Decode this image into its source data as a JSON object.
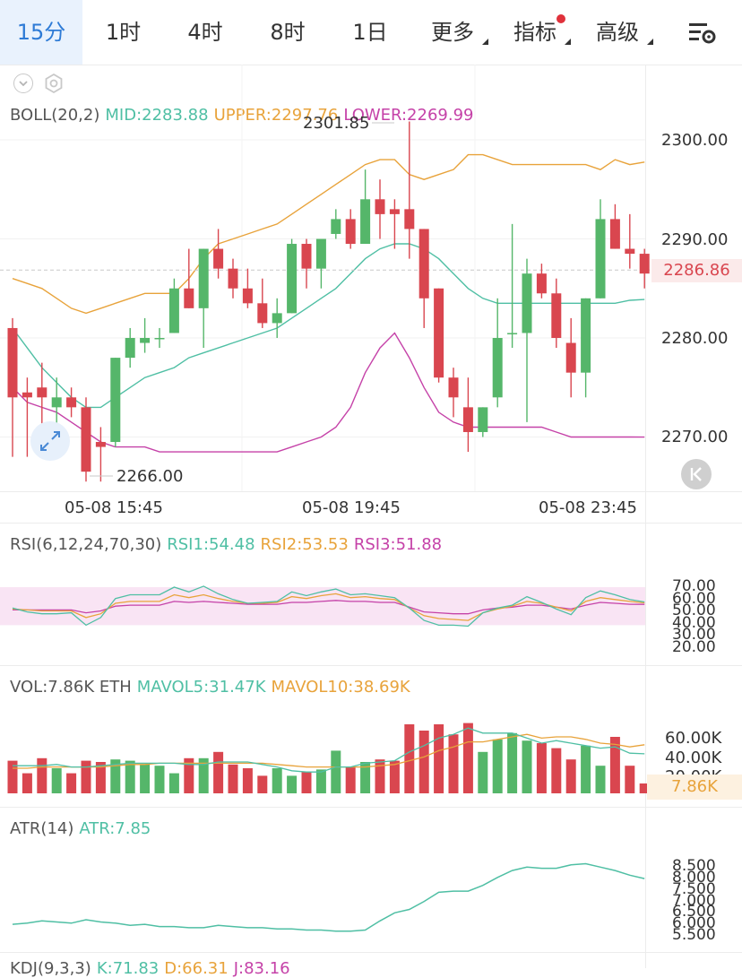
{
  "tabs": [
    {
      "label": "15分",
      "active": true
    },
    {
      "label": "1时"
    },
    {
      "label": "4时"
    },
    {
      "label": "8时"
    },
    {
      "label": "1日"
    },
    {
      "label": "更多",
      "dropdown": true
    },
    {
      "label": "指标",
      "dropdown": true,
      "dot": true
    },
    {
      "label": "高级",
      "dropdown": true
    }
  ],
  "settings_icon": "chart-settings-icon",
  "colors": {
    "up": "#55b66a",
    "down": "#d9464f",
    "mid": "#4fbfa4",
    "upper": "#e8a33b",
    "lower": "#c542a8",
    "rsi_band": "#f9e4f4"
  },
  "boll": {
    "label": "BOLL(20,2)",
    "mid": "MID:2283.88",
    "upper": "UPPER:2297.76",
    "lower": "LOWER:2269.99"
  },
  "price_axis": [
    "2300.00",
    "2290.00",
    "2280.00",
    "2270.00"
  ],
  "last_price": "2286.86",
  "high_label": "2301.85",
  "low_label": "2266.00",
  "time_labels": [
    "05-08 15:45",
    "05-08 19:45",
    "05-08 23:45"
  ],
  "rsi": {
    "label": "RSI(6,12,24,70,30)",
    "rsi1": "RSI1:54.48",
    "rsi2": "RSI2:53.53",
    "rsi3": "RSI3:51.88",
    "axis": [
      "70.00",
      "60.00",
      "50.00",
      "40.00",
      "30.00",
      "20.00"
    ]
  },
  "vol": {
    "label": "VOL:7.86K ETH",
    "mavol5": "MAVOL5:31.47K",
    "mavol10": "MAVOL10:38.69K",
    "axis": [
      "60.00K",
      "40.00K",
      "20.00K"
    ],
    "last": "7.86K"
  },
  "atr": {
    "label": "ATR(14)",
    "value": "ATR:7.85",
    "axis": [
      "8.500",
      "8.000",
      "7.500",
      "7.000",
      "6.500",
      "6.000",
      "5.500"
    ]
  },
  "kdj": {
    "label": "KDJ(9,3,3)",
    "k": "K:71.83",
    "d": "D:66.31",
    "j": "J:83.16"
  },
  "chart_data": {
    "type": "candlestick",
    "interval": "15m",
    "ylim": [
      2265,
      2302
    ],
    "candles": [
      {
        "o": 2281,
        "c": 2274,
        "h": 2282,
        "l": 2268
      },
      {
        "o": 2274.5,
        "c": 2274,
        "h": 2276,
        "l": 2268
      },
      {
        "o": 2275,
        "c": 2274,
        "h": 2277.5,
        "l": 2271
      },
      {
        "o": 2273,
        "c": 2274,
        "h": 2276,
        "l": 2268
      },
      {
        "o": 2274,
        "c": 2273,
        "h": 2275,
        "l": 2272
      },
      {
        "o": 2273,
        "c": 2266.5,
        "h": 2274,
        "l": 2265.5
      },
      {
        "o": 2269.5,
        "c": 2269,
        "h": 2271,
        "l": 2265.5
      },
      {
        "o": 2269.5,
        "c": 2278,
        "h": 2278,
        "l": 2269
      },
      {
        "o": 2278,
        "c": 2280,
        "h": 2281,
        "l": 2277
      },
      {
        "o": 2279.5,
        "c": 2280,
        "h": 2282,
        "l": 2278.5
      },
      {
        "o": 2280,
        "c": 2280,
        "h": 2281,
        "l": 2279
      },
      {
        "o": 2280.5,
        "c": 2285,
        "h": 2286,
        "l": 2280.5
      },
      {
        "o": 2285,
        "c": 2283,
        "h": 2289,
        "l": 2283
      },
      {
        "o": 2283,
        "c": 2289,
        "h": 2289,
        "l": 2279
      },
      {
        "o": 2289,
        "c": 2287,
        "h": 2291,
        "l": 2286
      },
      {
        "o": 2287,
        "c": 2285,
        "h": 2288,
        "l": 2284
      },
      {
        "o": 2285,
        "c": 2283.5,
        "h": 2287,
        "l": 2283
      },
      {
        "o": 2283.5,
        "c": 2281.5,
        "h": 2286,
        "l": 2281
      },
      {
        "o": 2281.5,
        "c": 2282.5,
        "h": 2284,
        "l": 2280
      },
      {
        "o": 2282.5,
        "c": 2289.5,
        "h": 2290,
        "l": 2282.5
      },
      {
        "o": 2289.5,
        "c": 2287,
        "h": 2290,
        "l": 2285
      },
      {
        "o": 2287,
        "c": 2290,
        "h": 2290,
        "l": 2285
      },
      {
        "o": 2290.5,
        "c": 2292,
        "h": 2293,
        "l": 2290
      },
      {
        "o": 2292,
        "c": 2289.5,
        "h": 2293,
        "l": 2289
      },
      {
        "o": 2289.5,
        "c": 2294,
        "h": 2297,
        "l": 2289.5
      },
      {
        "o": 2294,
        "c": 2292.5,
        "h": 2296,
        "l": 2290
      },
      {
        "o": 2293,
        "c": 2292.5,
        "h": 2294,
        "l": 2289
      },
      {
        "o": 2293,
        "c": 2291,
        "h": 2301.85,
        "l": 2288
      },
      {
        "o": 2291,
        "c": 2284,
        "h": 2291,
        "l": 2281
      },
      {
        "o": 2285,
        "c": 2276,
        "h": 2285,
        "l": 2275.5
      },
      {
        "o": 2276,
        "c": 2274,
        "h": 2277,
        "l": 2272
      },
      {
        "o": 2273,
        "c": 2270.5,
        "h": 2276,
        "l": 2268.5
      },
      {
        "o": 2270.5,
        "c": 2273,
        "h": 2273,
        "l": 2270
      },
      {
        "o": 2274,
        "c": 2280,
        "h": 2284,
        "l": 2273
      },
      {
        "o": 2280.5,
        "c": 2280.5,
        "h": 2291.5,
        "l": 2279
      },
      {
        "o": 2280.5,
        "c": 2286.5,
        "h": 2288,
        "l": 2271.5
      },
      {
        "o": 2286.5,
        "c": 2284.5,
        "h": 2287.5,
        "l": 2284
      },
      {
        "o": 2284.5,
        "c": 2280,
        "h": 2286,
        "l": 2279
      },
      {
        "o": 2279.5,
        "c": 2276.5,
        "h": 2282,
        "l": 2274
      },
      {
        "o": 2276.5,
        "c": 2284,
        "h": 2284,
        "l": 2274
      },
      {
        "o": 2284,
        "c": 2292,
        "h": 2294,
        "l": 2284
      },
      {
        "o": 2292,
        "c": 2289,
        "h": 2293.5,
        "l": 2289
      },
      {
        "o": 2289,
        "c": 2288.5,
        "h": 2292.5,
        "l": 2287
      },
      {
        "o": 2288.5,
        "c": 2286.5,
        "h": 2289,
        "l": 2285
      }
    ],
    "boll_mid": [
      2281,
      2279,
      2277,
      2275.5,
      2274,
      2273,
      2273,
      2274,
      2275,
      2276,
      2276.5,
      2277,
      2278,
      2278.5,
      2279,
      2279.5,
      2280,
      2280.5,
      2281,
      2282,
      2283,
      2284,
      2285,
      2286.5,
      2288,
      2289,
      2289.5,
      2289.5,
      2289,
      2288,
      2286.5,
      2285,
      2284,
      2283.5,
      2283.5,
      2283.5,
      2283.5,
      2283.5,
      2283.5,
      2283.5,
      2283.5,
      2283.5,
      2283.8,
      2283.88
    ],
    "boll_upper": [
      2286,
      2285.5,
      2285,
      2284,
      2283,
      2282.5,
      2283,
      2283.5,
      2284,
      2284.5,
      2284.5,
      2284.5,
      2286,
      2288,
      2289.5,
      2290,
      2290.5,
      2291,
      2291.5,
      2292.5,
      2293.5,
      2294.5,
      2295.5,
      2296.5,
      2297.5,
      2298,
      2298,
      2296.5,
      2296,
      2296.5,
      2297,
      2298.5,
      2298.5,
      2298,
      2297.5,
      2297.5,
      2297.5,
      2297.5,
      2297.5,
      2297.5,
      2297,
      2298,
      2297.5,
      2297.76
    ],
    "boll_lower": [
      2275,
      2273.5,
      2273,
      2272.5,
      2271.5,
      2270.5,
      2269.5,
      2269,
      2269,
      2269,
      2268.5,
      2268.5,
      2268.5,
      2268.5,
      2268.5,
      2268.5,
      2268.5,
      2268.5,
      2268.5,
      2269,
      2269.5,
      2270,
      2271,
      2273,
      2276.5,
      2279,
      2280.5,
      2278,
      2275,
      2272.5,
      2271.5,
      2271,
      2271,
      2271,
      2271,
      2271,
      2271,
      2270.5,
      2270,
      2270,
      2270,
      2270,
      2270,
      2269.99
    ],
    "rsi_ylim": [
      20,
      70
    ],
    "rsi1": [
      48,
      44,
      42,
      42,
      43,
      30,
      38,
      58,
      62,
      62,
      62,
      70,
      65,
      71,
      63,
      57,
      53,
      54,
      55,
      65,
      61,
      65,
      68,
      62,
      63,
      61,
      59,
      48,
      35,
      30,
      30,
      29,
      43,
      48,
      51,
      60,
      54,
      47,
      41,
      59,
      66,
      62,
      57,
      54.48
    ],
    "rsi2": [
      47,
      46,
      45,
      45,
      45,
      38,
      42,
      53,
      55,
      55,
      55,
      62,
      59,
      62,
      58,
      55,
      53,
      53,
      54,
      60,
      58,
      61,
      63,
      59,
      60,
      58,
      57,
      48,
      40,
      37,
      36,
      35,
      43,
      47,
      50,
      55,
      53,
      49,
      45,
      55,
      59,
      57,
      55,
      53.53
    ],
    "rsi3": [
      46,
      46,
      46,
      46,
      46,
      43,
      45,
      50,
      51,
      51,
      51,
      55,
      54,
      55,
      54,
      53,
      52,
      52,
      52,
      54,
      54,
      55,
      56,
      55,
      55,
      54,
      54,
      49,
      44,
      43,
      42,
      42,
      46,
      48,
      49,
      51,
      51,
      49,
      47,
      51,
      54,
      53,
      52,
      51.88
    ],
    "vol_ylim": [
      0,
      70
    ],
    "volume": [
      26,
      16,
      28,
      20,
      16,
      26,
      25,
      27,
      26,
      23,
      22,
      16,
      28,
      28,
      33,
      23,
      20,
      14,
      20,
      14,
      17,
      19,
      34,
      21,
      25,
      27,
      26,
      55,
      50,
      55,
      47,
      56,
      33,
      43,
      48,
      42,
      40,
      36,
      27,
      38,
      22,
      45,
      22,
      7.86
    ],
    "mavol5": [
      22,
      22,
      22,
      23,
      21,
      21,
      22,
      23,
      24,
      24,
      24,
      24,
      23,
      23,
      25,
      25,
      25,
      23,
      21,
      18,
      17,
      17,
      21,
      21,
      24,
      25,
      26,
      33,
      38,
      44,
      47,
      52,
      48,
      48,
      48,
      44,
      40,
      42,
      40,
      38,
      36,
      37,
      32,
      31.47
    ],
    "mavol10": [
      20,
      20,
      21,
      21,
      21,
      21,
      21,
      22,
      23,
      23,
      24,
      24,
      24,
      24,
      24,
      24,
      24,
      24,
      23,
      22,
      21,
      21,
      21,
      21,
      21,
      22,
      23,
      26,
      29,
      34,
      37,
      41,
      41,
      43,
      45,
      47,
      44,
      45,
      45,
      43,
      40,
      39,
      37,
      38.69
    ],
    "atr_ylim": [
      5.4,
      8.7
    ],
    "atr": [
      5.85,
      5.9,
      6.0,
      5.95,
      5.9,
      6.05,
      5.95,
      5.9,
      5.8,
      5.85,
      5.75,
      5.75,
      5.7,
      5.7,
      5.8,
      5.75,
      5.7,
      5.7,
      5.65,
      5.65,
      5.6,
      5.6,
      5.55,
      5.55,
      5.6,
      6.0,
      6.35,
      6.5,
      6.85,
      7.25,
      7.3,
      7.3,
      7.55,
      7.9,
      8.2,
      8.35,
      8.3,
      8.3,
      8.45,
      8.5,
      8.35,
      8.2,
      8.0,
      7.85
    ]
  }
}
